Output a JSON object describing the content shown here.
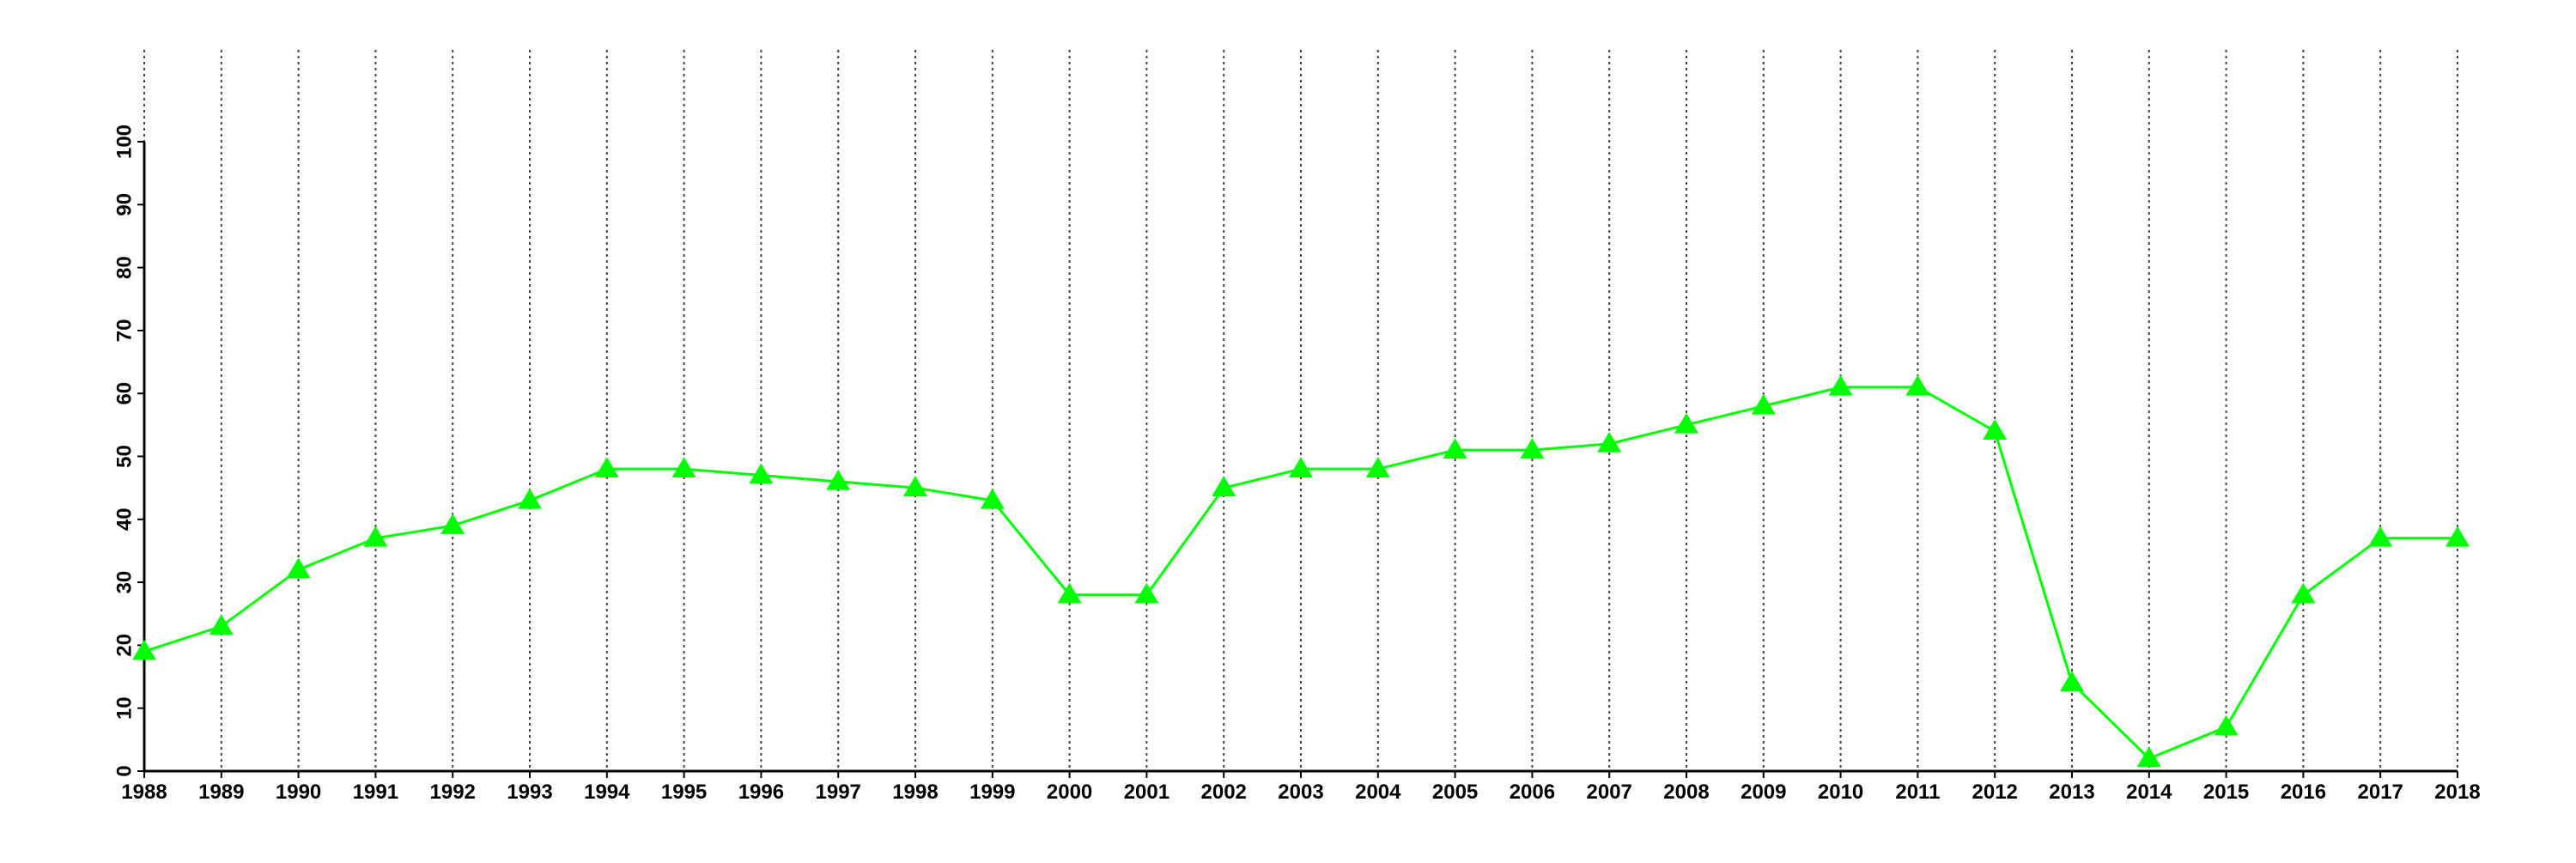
{
  "chart_data": {
    "type": "line",
    "x": [
      1988,
      1989,
      1990,
      1991,
      1992,
      1993,
      1994,
      1995,
      1996,
      1997,
      1998,
      1999,
      2000,
      2001,
      2002,
      2003,
      2004,
      2005,
      2006,
      2007,
      2008,
      2009,
      2010,
      2011,
      2012,
      2013,
      2014,
      2015,
      2016,
      2017,
      2018
    ],
    "series": [
      {
        "color": "#00ff00",
        "marker": "triangle",
        "values": [
          19,
          23,
          32,
          37,
          39,
          43,
          48,
          48,
          47,
          46,
          45,
          43,
          28,
          28,
          45,
          48,
          48,
          51,
          51,
          52,
          55,
          58,
          61,
          61,
          54,
          14,
          2,
          7,
          28,
          37,
          37
        ]
      }
    ],
    "xlim": [
      1988,
      2018
    ],
    "xticks": [
      1988,
      1989,
      1990,
      1991,
      1992,
      1993,
      1994,
      1995,
      1996,
      1997,
      1998,
      1999,
      2000,
      2001,
      2002,
      2003,
      2004,
      2005,
      2006,
      2007,
      2008,
      2009,
      2010,
      2011,
      2012,
      2013,
      2014,
      2015,
      2016,
      2017,
      2018
    ],
    "ylim": [
      0,
      100
    ],
    "yticks": [
      0,
      10,
      20,
      30,
      40,
      50,
      60,
      70,
      80,
      90,
      100
    ],
    "grid": "x"
  }
}
